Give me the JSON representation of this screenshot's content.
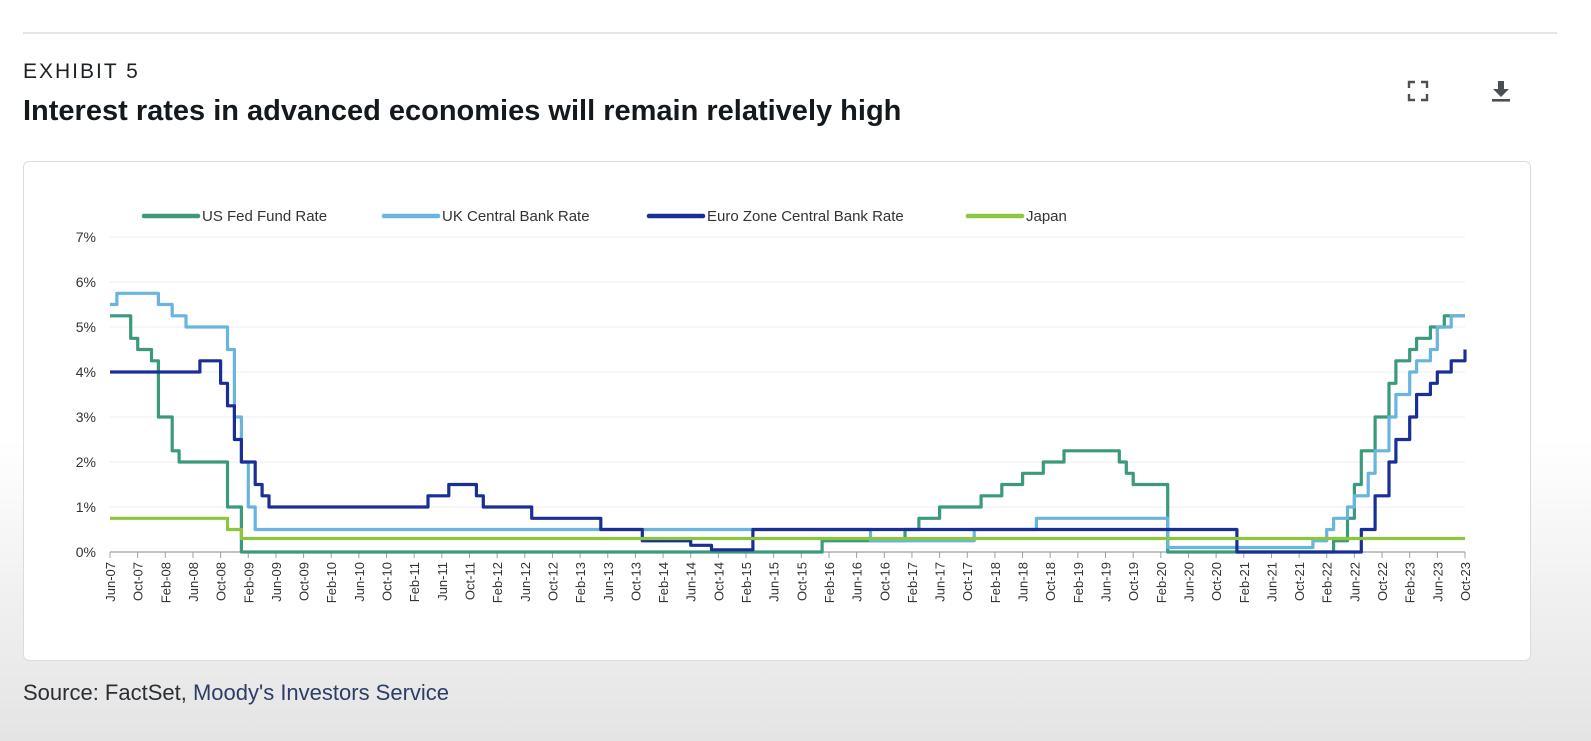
{
  "header": {
    "exhibit_label": "EXHIBIT 5",
    "title": "Interest rates in advanced economies will remain relatively high",
    "expand_icon": "expand-icon",
    "download_icon": "download-icon"
  },
  "source": {
    "prefix": "Source: FactSet, ",
    "link_text": "Moody's Investors Service"
  },
  "chart_data": {
    "type": "line",
    "title": "",
    "xlabel": "",
    "ylabel": "",
    "ylim": [
      0,
      7
    ],
    "yticks": [
      "0%",
      "1%",
      "2%",
      "3%",
      "4%",
      "5%",
      "6%",
      "7%"
    ],
    "grid": "horizontal",
    "legend_position": "top-left",
    "x_range": [
      "2007-06",
      "2023-10"
    ],
    "xticks": [
      "Jun-07",
      "Oct-07",
      "Feb-08",
      "Jun-08",
      "Oct-08",
      "Feb-09",
      "Jun-09",
      "Oct-09",
      "Feb-10",
      "Jun-10",
      "Oct-10",
      "Feb-11",
      "Jun-11",
      "Oct-11",
      "Feb-12",
      "Jun-12",
      "Oct-12",
      "Feb-13",
      "Jun-13",
      "Oct-13",
      "Feb-14",
      "Jun-14",
      "Oct-14",
      "Feb-15",
      "Jun-15",
      "Oct-15",
      "Feb-16",
      "Jun-16",
      "Oct-16",
      "Feb-17",
      "Jun-17",
      "Oct-17",
      "Feb-18",
      "Jun-18",
      "Oct-18",
      "Feb-19",
      "Jun-19",
      "Oct-19",
      "Feb-20",
      "Jun-20",
      "Oct-20",
      "Feb-21",
      "Jun-21",
      "Oct-21",
      "Feb-22",
      "Jun-22",
      "Oct-22",
      "Feb-23",
      "Jun-23",
      "Oct-23"
    ],
    "series": [
      {
        "name": "US Fed Fund Rate",
        "color": "#3a9a7b",
        "points": [
          [
            "2007-06",
            5.25
          ],
          [
            "2007-08",
            5.25
          ],
          [
            "2007-09",
            4.75
          ],
          [
            "2007-10",
            4.5
          ],
          [
            "2007-11",
            4.5
          ],
          [
            "2007-12",
            4.25
          ],
          [
            "2008-01",
            3.0
          ],
          [
            "2008-02",
            3.0
          ],
          [
            "2008-03",
            2.25
          ],
          [
            "2008-04",
            2.0
          ],
          [
            "2008-10",
            2.0
          ],
          [
            "2008-11",
            1.0
          ],
          [
            "2008-12",
            1.0
          ],
          [
            "2009-01",
            0.0
          ],
          [
            "2015-12",
            0.0
          ],
          [
            "2016-01",
            0.25
          ],
          [
            "2016-12",
            0.25
          ],
          [
            "2017-01",
            0.5
          ],
          [
            "2017-03",
            0.75
          ],
          [
            "2017-05",
            0.75
          ],
          [
            "2017-06",
            1.0
          ],
          [
            "2017-11",
            1.0
          ],
          [
            "2017-12",
            1.25
          ],
          [
            "2018-02",
            1.25
          ],
          [
            "2018-03",
            1.5
          ],
          [
            "2018-05",
            1.5
          ],
          [
            "2018-06",
            1.75
          ],
          [
            "2018-08",
            1.75
          ],
          [
            "2018-09",
            2.0
          ],
          [
            "2018-11",
            2.0
          ],
          [
            "2018-12",
            2.25
          ],
          [
            "2019-07",
            2.25
          ],
          [
            "2019-08",
            2.0
          ],
          [
            "2019-09",
            1.75
          ],
          [
            "2019-10",
            1.5
          ],
          [
            "2020-02",
            1.5
          ],
          [
            "2020-03",
            0.0
          ],
          [
            "2022-02",
            0.0
          ],
          [
            "2022-03",
            0.25
          ],
          [
            "2022-05",
            0.75
          ],
          [
            "2022-06",
            1.5
          ],
          [
            "2022-07",
            2.25
          ],
          [
            "2022-09",
            3.0
          ],
          [
            "2022-10",
            3.0
          ],
          [
            "2022-11",
            3.75
          ],
          [
            "2022-12",
            4.25
          ],
          [
            "2023-01",
            4.25
          ],
          [
            "2023-02",
            4.5
          ],
          [
            "2023-03",
            4.75
          ],
          [
            "2023-04",
            4.75
          ],
          [
            "2023-05",
            5.0
          ],
          [
            "2023-06",
            5.0
          ],
          [
            "2023-07",
            5.25
          ],
          [
            "2023-10",
            5.25
          ]
        ]
      },
      {
        "name": "UK Central Bank Rate",
        "color": "#6ab4e0",
        "points": [
          [
            "2007-06",
            5.5
          ],
          [
            "2007-07",
            5.75
          ],
          [
            "2007-12",
            5.75
          ],
          [
            "2008-01",
            5.5
          ],
          [
            "2008-02",
            5.5
          ],
          [
            "2008-03",
            5.25
          ],
          [
            "2008-04",
            5.25
          ],
          [
            "2008-05",
            5.0
          ],
          [
            "2008-10",
            5.0
          ],
          [
            "2008-11",
            4.5
          ],
          [
            "2008-12",
            3.0
          ],
          [
            "2009-01",
            2.0
          ],
          [
            "2009-02",
            1.0
          ],
          [
            "2009-03",
            0.5
          ],
          [
            "2016-07",
            0.5
          ],
          [
            "2016-08",
            0.25
          ],
          [
            "2017-10",
            0.25
          ],
          [
            "2017-11",
            0.5
          ],
          [
            "2018-07",
            0.5
          ],
          [
            "2018-08",
            0.75
          ],
          [
            "2020-02",
            0.75
          ],
          [
            "2020-03",
            0.1
          ],
          [
            "2021-11",
            0.1
          ],
          [
            "2021-12",
            0.25
          ],
          [
            "2022-02",
            0.5
          ],
          [
            "2022-03",
            0.75
          ],
          [
            "2022-04",
            0.75
          ],
          [
            "2022-05",
            1.0
          ],
          [
            "2022-06",
            1.25
          ],
          [
            "2022-07",
            1.25
          ],
          [
            "2022-08",
            1.75
          ],
          [
            "2022-09",
            2.25
          ],
          [
            "2022-10",
            2.25
          ],
          [
            "2022-11",
            3.0
          ],
          [
            "2022-12",
            3.5
          ],
          [
            "2023-01",
            3.5
          ],
          [
            "2023-02",
            4.0
          ],
          [
            "2023-03",
            4.25
          ],
          [
            "2023-04",
            4.25
          ],
          [
            "2023-05",
            4.5
          ],
          [
            "2023-06",
            5.0
          ],
          [
            "2023-07",
            5.0
          ],
          [
            "2023-08",
            5.25
          ],
          [
            "2023-10",
            5.25
          ]
        ]
      },
      {
        "name": "Euro Zone Central Bank Rate",
        "color": "#1a2f95",
        "points": [
          [
            "2007-06",
            4.0
          ],
          [
            "2008-06",
            4.0
          ],
          [
            "2008-07",
            4.25
          ],
          [
            "2008-09",
            4.25
          ],
          [
            "2008-10",
            3.75
          ],
          [
            "2008-11",
            3.25
          ],
          [
            "2008-12",
            2.5
          ],
          [
            "2009-01",
            2.0
          ],
          [
            "2009-02",
            2.0
          ],
          [
            "2009-03",
            1.5
          ],
          [
            "2009-04",
            1.25
          ],
          [
            "2009-05",
            1.0
          ],
          [
            "2011-03",
            1.0
          ],
          [
            "2011-04",
            1.25
          ],
          [
            "2011-06",
            1.25
          ],
          [
            "2011-07",
            1.5
          ],
          [
            "2011-10",
            1.5
          ],
          [
            "2011-11",
            1.25
          ],
          [
            "2011-12",
            1.0
          ],
          [
            "2012-06",
            1.0
          ],
          [
            "2012-07",
            0.75
          ],
          [
            "2013-04",
            0.75
          ],
          [
            "2013-05",
            0.5
          ],
          [
            "2013-10",
            0.5
          ],
          [
            "2013-11",
            0.25
          ],
          [
            "2014-05",
            0.25
          ],
          [
            "2014-06",
            0.15
          ],
          [
            "2014-08",
            0.15
          ],
          [
            "2014-09",
            0.05
          ],
          [
            "2015-02",
            0.05
          ],
          [
            "2015-03",
            0.5
          ],
          [
            "2020-12",
            0.5
          ],
          [
            "2021-01",
            0.0
          ],
          [
            "2022-06",
            0.0
          ],
          [
            "2022-07",
            0.5
          ],
          [
            "2022-08",
            0.5
          ],
          [
            "2022-09",
            1.25
          ],
          [
            "2022-10",
            1.25
          ],
          [
            "2022-11",
            2.0
          ],
          [
            "2022-12",
            2.5
          ],
          [
            "2023-01",
            2.5
          ],
          [
            "2023-02",
            3.0
          ],
          [
            "2023-03",
            3.5
          ],
          [
            "2023-04",
            3.5
          ],
          [
            "2023-05",
            3.75
          ],
          [
            "2023-06",
            4.0
          ],
          [
            "2023-07",
            4.0
          ],
          [
            "2023-08",
            4.25
          ],
          [
            "2023-10",
            4.5
          ]
        ]
      },
      {
        "name": "Japan",
        "color": "#8cc63f",
        "points": [
          [
            "2007-06",
            0.75
          ],
          [
            "2008-10",
            0.75
          ],
          [
            "2008-11",
            0.5
          ],
          [
            "2008-12",
            0.5
          ],
          [
            "2009-01",
            0.3
          ],
          [
            "2023-10",
            0.3
          ]
        ]
      }
    ]
  }
}
